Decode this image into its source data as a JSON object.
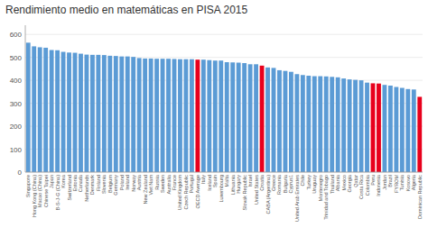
{
  "chart_data": {
    "type": "bar",
    "title": "Rendimiento medio en matemáticas en PISA 2015",
    "categories": [
      "Singapore",
      "Hong Kong (China)",
      "Macao (China)",
      "Chinese Taipei",
      "Japan",
      "B-S-J-G (China)",
      "Korea",
      "Switzerland",
      "Estonia",
      "Canada",
      "Netherlands",
      "Denmark",
      "Finland",
      "Slovenia",
      "Belgium",
      "Germany",
      "Poland",
      "Ireland",
      "Norway",
      "Austria",
      "New Zealand",
      "Viet Nam",
      "Russia",
      "Sweden",
      "Australia",
      "France",
      "United Kingdom",
      "Czech Republic",
      "Portugal",
      "OECD Average",
      "Italy",
      "Iceland",
      "Spain",
      "Luxembourg",
      "Malta",
      "Lithuania",
      "Hungary",
      "Slovak Republic",
      "Israel",
      "United States",
      "Croatia",
      "CABA (Argentina)",
      "Greece",
      "Romania",
      "Bulgaria",
      "Cyprus1",
      "United Arab Emirates",
      "Chile",
      "Turkey",
      "Uruguay",
      "Montenegro",
      "Trinidad and Tobago",
      "Thailand",
      "Albania",
      "Mexico",
      "Georgia",
      "Qatar",
      "Costa Rica",
      "Colombia",
      "Peru",
      "Indonesia",
      "Jordan",
      "Brazil",
      "FYROM",
      "Tunisia",
      "Kosovo",
      "Algeria",
      "Dominican Republic"
    ],
    "values": [
      564,
      548,
      544,
      542,
      532,
      531,
      524,
      521,
      520,
      516,
      512,
      511,
      511,
      510,
      507,
      506,
      504,
      504,
      502,
      497,
      495,
      495,
      494,
      494,
      494,
      493,
      492,
      492,
      492,
      490,
      490,
      488,
      486,
      486,
      479,
      478,
      477,
      475,
      470,
      470,
      464,
      456,
      454,
      444,
      441,
      437,
      427,
      423,
      420,
      418,
      418,
      417,
      415,
      413,
      408,
      404,
      402,
      400,
      390,
      387,
      386,
      380,
      377,
      371,
      367,
      362,
      360,
      328
    ],
    "colors": [
      "#5b9bd5",
      "#5b9bd5",
      "#5b9bd5",
      "#5b9bd5",
      "#5b9bd5",
      "#5b9bd5",
      "#5b9bd5",
      "#5b9bd5",
      "#5b9bd5",
      "#5b9bd5",
      "#5b9bd5",
      "#5b9bd5",
      "#5b9bd5",
      "#5b9bd5",
      "#5b9bd5",
      "#5b9bd5",
      "#5b9bd5",
      "#5b9bd5",
      "#5b9bd5",
      "#5b9bd5",
      "#5b9bd5",
      "#5b9bd5",
      "#5b9bd5",
      "#5b9bd5",
      "#5b9bd5",
      "#5b9bd5",
      "#5b9bd5",
      "#5b9bd5",
      "#5b9bd5",
      "#e8001c",
      "#5b9bd5",
      "#5b9bd5",
      "#5b9bd5",
      "#5b9bd5",
      "#5b9bd5",
      "#5b9bd5",
      "#5b9bd5",
      "#5b9bd5",
      "#5b9bd5",
      "#5b9bd5",
      "#e8001c",
      "#5b9bd5",
      "#5b9bd5",
      "#5b9bd5",
      "#5b9bd5",
      "#5b9bd5",
      "#5b9bd5",
      "#5b9bd5",
      "#5b9bd5",
      "#5b9bd5",
      "#5b9bd5",
      "#5b9bd5",
      "#5b9bd5",
      "#5b9bd5",
      "#5b9bd5",
      "#5b9bd5",
      "#5b9bd5",
      "#5b9bd5",
      "#5b9bd5",
      "#e8001c",
      "#e8001c",
      "#5b9bd5",
      "#5b9bd5",
      "#5b9bd5",
      "#5b9bd5",
      "#5b9bd5",
      "#5b9bd5",
      "#e8001c"
    ],
    "ylim": [
      0,
      640
    ],
    "yticks": [
      0,
      100,
      200,
      300,
      400,
      500,
      600
    ],
    "grid": true
  }
}
